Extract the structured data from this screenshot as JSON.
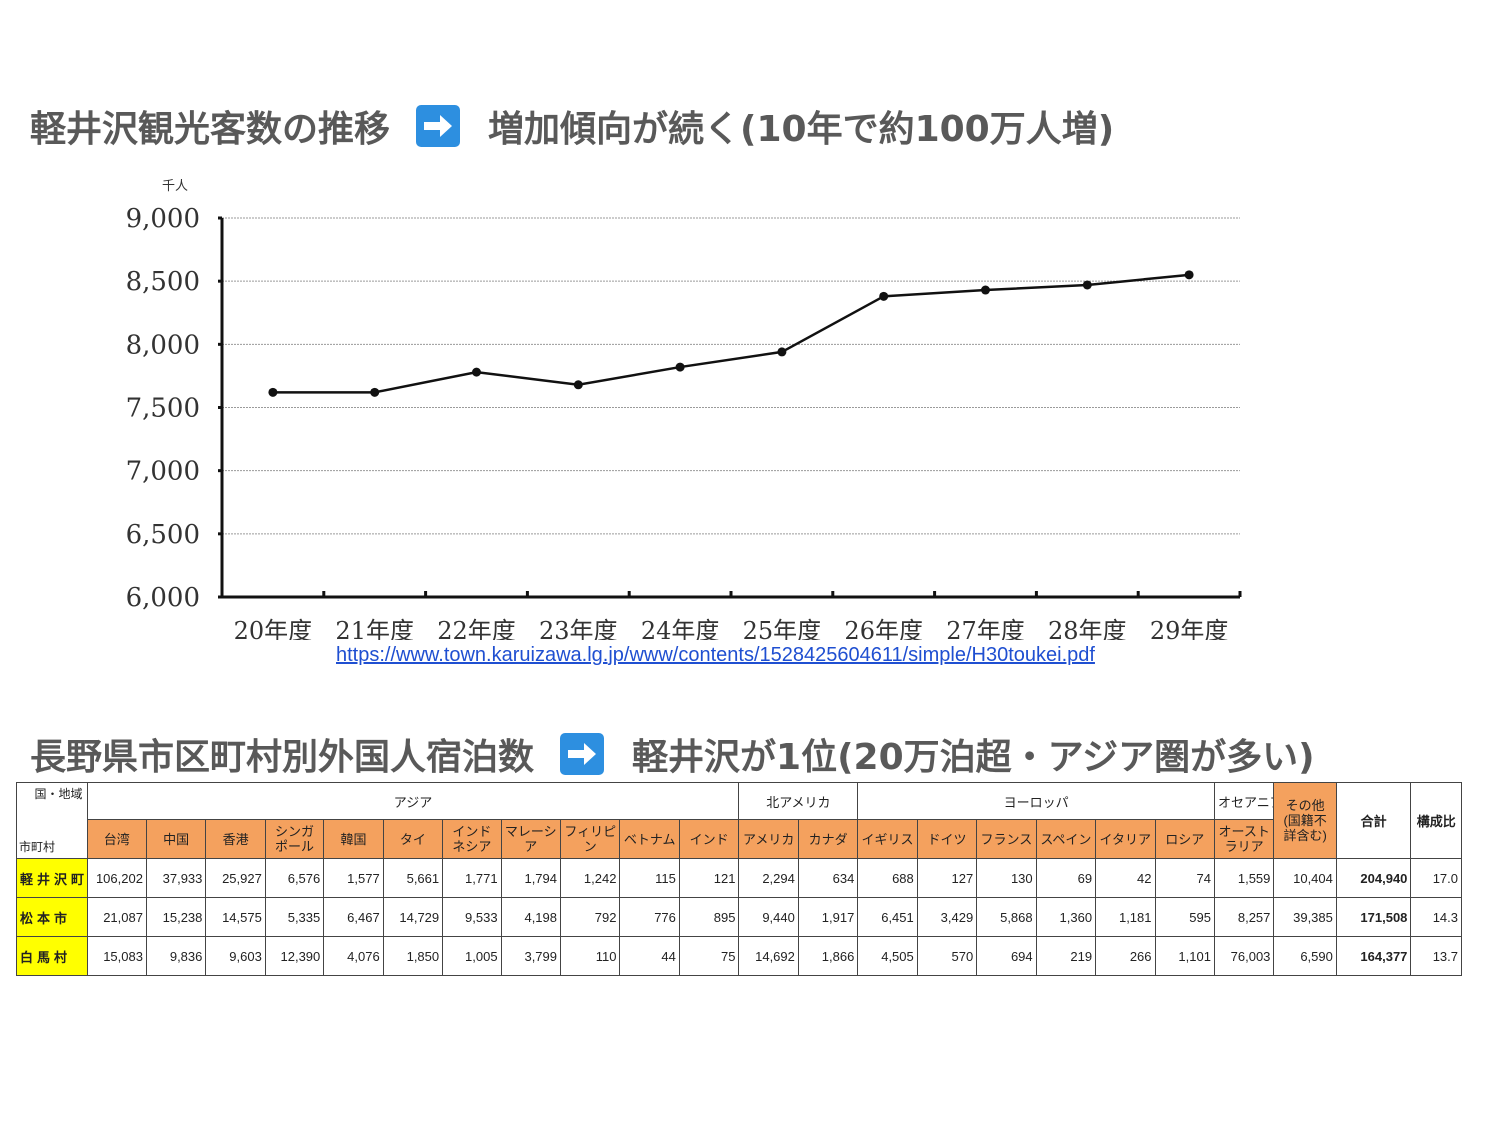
{
  "section1": {
    "title": "軽井沢観光客数の推移",
    "arrow_icon": "right-arrow-icon",
    "subtitle": "増加傾向が続く(10年で約100万人増)"
  },
  "chart_data": {
    "type": "line",
    "title": "",
    "ylabel": "千人",
    "xlabel": "",
    "categories": [
      "20年度",
      "21年度",
      "22年度",
      "23年度",
      "24年度",
      "25年度",
      "26年度",
      "27年度",
      "28年度",
      "29年度"
    ],
    "series": [
      {
        "values": [
          7620,
          7620,
          7780,
          7680,
          7820,
          7940,
          8380,
          8430,
          8470,
          8550
        ]
      }
    ],
    "ylim": [
      6000,
      9000
    ],
    "yticks": [
      6000,
      6500,
      7000,
      7500,
      8000,
      8500,
      9000
    ],
    "ytick_labels": [
      "6,000",
      "6,500",
      "7,000",
      "7,500",
      "8,000",
      "8,500",
      "9,000"
    ],
    "grid": true,
    "line_color": "#111111"
  },
  "source_url": "https://www.town.karuizawa.lg.jp/www/contents/1528425604611/simple/H30toukei.pdf",
  "section2": {
    "title": "長野県市区町村別外国人宿泊数",
    "arrow_icon": "right-arrow-icon",
    "subtitle": "軽井沢が1位(20万泊超・アジア圏が多い)"
  },
  "table": {
    "corner_top": "国・地域",
    "corner_bottom": "市町村",
    "regions": [
      {
        "label": "アジア",
        "span": 11
      },
      {
        "label": "北アメリカ",
        "span": 2
      },
      {
        "label": "ヨーロッパ",
        "span": 6
      },
      {
        "label": "オセアニア",
        "span": 1
      }
    ],
    "other_header": "その他(国籍不詳含む)",
    "total_header": "合計",
    "ratio_header": "構成比",
    "countries": [
      "台湾",
      "中国",
      "香港",
      "シンガポール",
      "韓国",
      "タイ",
      "インドネシア",
      "マレーシア",
      "フィリピン",
      "ベトナム",
      "インド",
      "アメリカ",
      "カナダ",
      "イギリス",
      "ドイツ",
      "フランス",
      "スペイン",
      "イタリア",
      "ロシア",
      "オーストラリア"
    ],
    "rows": [
      {
        "name": "軽井沢町",
        "values": [
          "106,202",
          "37,933",
          "25,927",
          "6,576",
          "1,577",
          "5,661",
          "1,771",
          "1,794",
          "1,242",
          "115",
          "121",
          "2,294",
          "634",
          "688",
          "127",
          "130",
          "69",
          "42",
          "74",
          "1,559",
          "10,404"
        ],
        "total": "204,940",
        "ratio": "17.0"
      },
      {
        "name": "松本市",
        "values": [
          "21,087",
          "15,238",
          "14,575",
          "5,335",
          "6,467",
          "14,729",
          "9,533",
          "4,198",
          "792",
          "776",
          "895",
          "9,440",
          "1,917",
          "6,451",
          "3,429",
          "5,868",
          "1,360",
          "1,181",
          "595",
          "8,257",
          "39,385"
        ],
        "total": "171,508",
        "ratio": "14.3"
      },
      {
        "name": "白馬村",
        "values": [
          "15,083",
          "9,836",
          "9,603",
          "12,390",
          "4,076",
          "1,850",
          "1,005",
          "3,799",
          "110",
          "44",
          "75",
          "14,692",
          "1,866",
          "4,505",
          "570",
          "694",
          "219",
          "266",
          "1,101",
          "76,003",
          "6,590"
        ],
        "total": "164,377",
        "ratio": "13.7"
      }
    ]
  }
}
